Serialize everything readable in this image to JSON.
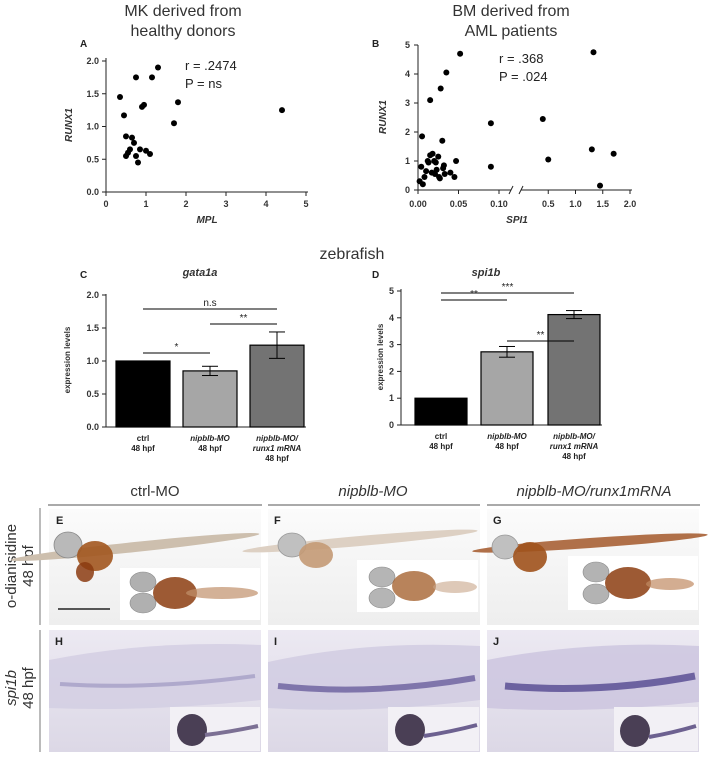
{
  "titles": {
    "a_line1": "MK derived from",
    "a_line2": "healthy donors",
    "b_line1": "BM derived from",
    "b_line2": "AML patients",
    "zebrafish": "zebrafish"
  },
  "panel_letters": [
    "A",
    "B",
    "C",
    "D",
    "E",
    "F",
    "G",
    "H",
    "I",
    "J"
  ],
  "chart_data": [
    {
      "type": "scatter",
      "panel": "A",
      "xlabel": "MPL",
      "ylabel": "RUNX1",
      "xlim": [
        0,
        5
      ],
      "ylim": [
        0,
        2.0
      ],
      "xticks": [
        "0",
        "1",
        "2",
        "3",
        "4",
        "5"
      ],
      "yticks": [
        "0.0",
        "0.5",
        "1.0",
        "1.5",
        "2.0"
      ],
      "annotation_r": "r = .2474",
      "annotation_p": "P = ns",
      "points": [
        [
          0.35,
          1.45
        ],
        [
          0.45,
          1.17
        ],
        [
          0.5,
          0.85
        ],
        [
          0.55,
          0.6
        ],
        [
          0.5,
          0.55
        ],
        [
          0.6,
          0.65
        ],
        [
          0.65,
          0.83
        ],
        [
          0.7,
          0.75
        ],
        [
          0.75,
          1.75
        ],
        [
          0.75,
          0.55
        ],
        [
          0.8,
          0.45
        ],
        [
          0.85,
          0.65
        ],
        [
          0.9,
          1.3
        ],
        [
          0.95,
          1.33
        ],
        [
          1.0,
          0.63
        ],
        [
          1.1,
          0.58
        ],
        [
          1.15,
          1.75
        ],
        [
          1.3,
          1.9
        ],
        [
          1.7,
          1.05
        ],
        [
          1.8,
          1.37
        ],
        [
          4.4,
          1.25
        ]
      ]
    },
    {
      "type": "scatter",
      "panel": "B",
      "xlabel": "SPI1",
      "ylabel": "RUNX1",
      "ylim": [
        0,
        5
      ],
      "x_broken_axis": true,
      "xticks_left": [
        "0.00",
        "0.05",
        "0.10"
      ],
      "xticks_right": [
        "0.5",
        "1.0",
        "1.5",
        "2.0"
      ],
      "yticks": [
        "0",
        "1",
        "2",
        "3",
        "4",
        "5"
      ],
      "annotation_r": "r = .368",
      "annotation_p": "P = .024",
      "points": [
        [
          0.002,
          0.3
        ],
        [
          0.004,
          0.8
        ],
        [
          0.005,
          1.85
        ],
        [
          0.006,
          0.2
        ],
        [
          0.008,
          0.45
        ],
        [
          0.01,
          0.65
        ],
        [
          0.012,
          1.0
        ],
        [
          0.013,
          0.95
        ],
        [
          0.015,
          1.2
        ],
        [
          0.015,
          3.1
        ],
        [
          0.017,
          0.6
        ],
        [
          0.018,
          1.25
        ],
        [
          0.02,
          1.0
        ],
        [
          0.021,
          0.55
        ],
        [
          0.022,
          0.95
        ],
        [
          0.023,
          0.7
        ],
        [
          0.025,
          1.15
        ],
        [
          0.026,
          0.45
        ],
        [
          0.027,
          0.4
        ],
        [
          0.028,
          3.5
        ],
        [
          0.03,
          1.7
        ],
        [
          0.031,
          0.75
        ],
        [
          0.032,
          0.85
        ],
        [
          0.033,
          0.55
        ],
        [
          0.035,
          4.05
        ],
        [
          0.04,
          0.6
        ],
        [
          0.045,
          0.45
        ],
        [
          0.047,
          1.0
        ],
        [
          0.052,
          4.7
        ],
        [
          0.09,
          2.3
        ],
        [
          0.09,
          0.8
        ],
        [
          0.4,
          2.45
        ],
        [
          0.5,
          1.05
        ],
        [
          1.3,
          1.4
        ],
        [
          1.33,
          4.75
        ],
        [
          1.45,
          0.15
        ],
        [
          1.7,
          1.25
        ]
      ]
    },
    {
      "type": "bar",
      "panel": "C",
      "title": "gata1a",
      "ylabel": "expression levels",
      "ylim": [
        0,
        2.0
      ],
      "yticks": [
        "0.0",
        "0.5",
        "1.0",
        "1.5",
        "2.0"
      ],
      "categories": [
        {
          "line1": "ctrl",
          "line2": "48 hpf",
          "line3": ""
        },
        {
          "line1": "nipblb-MO",
          "line2": "48 hpf",
          "line3": ""
        },
        {
          "line1": "nipblb-MO/",
          "line2": "runx1 mRNA",
          "line3": "48 hpf"
        }
      ],
      "values": [
        1.0,
        0.85,
        1.24
      ],
      "errors": [
        0,
        0.07,
        0.2
      ],
      "colors": [
        "#000000",
        "#a6a6a6",
        "#737373"
      ],
      "significance": [
        {
          "label": "n.s",
          "from": 0,
          "to": 2
        },
        {
          "label": "*",
          "from": 0,
          "to": 1
        },
        {
          "label": "**",
          "from": 1,
          "to": 2
        }
      ]
    },
    {
      "type": "bar",
      "panel": "D",
      "title": "spi1b",
      "ylabel": "expression levels",
      "ylim": [
        0,
        5
      ],
      "yticks": [
        "0",
        "1",
        "2",
        "3",
        "4",
        "5"
      ],
      "categories": [
        {
          "line1": "ctrl",
          "line2": "48 hpf",
          "line3": ""
        },
        {
          "line1": "nipblb-MO",
          "line2": "48 hpf",
          "line3": ""
        },
        {
          "line1": "nipblb-MO/",
          "line2": "runx1 mRNA",
          "line3": "48 hpf"
        }
      ],
      "values": [
        1.0,
        2.73,
        4.12
      ],
      "errors": [
        0,
        0.2,
        0.15
      ],
      "colors": [
        "#000000",
        "#a6a6a6",
        "#737373"
      ],
      "significance": [
        {
          "label": "***",
          "from": 0,
          "to": 2
        },
        {
          "label": "**",
          "from": 1,
          "to": 2
        },
        {
          "label": "**",
          "from": 0,
          "to": 1
        }
      ]
    }
  ],
  "images": {
    "columns": [
      "ctrl-MO",
      "nipblb-MO",
      "nipblb-MO/runx1mRNA"
    ],
    "row1_label_line1": "o-dianisidine",
    "row1_label_line2": "48 hpf",
    "row2_label_line1": "spi1b",
    "row2_label_line2": "48 hpf"
  }
}
